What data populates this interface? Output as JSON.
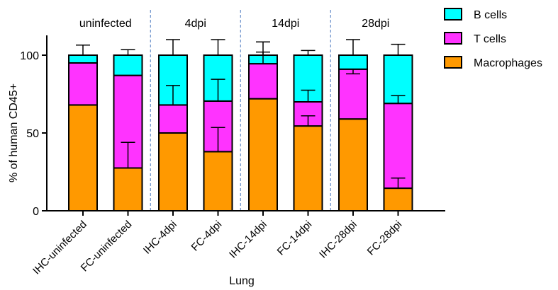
{
  "chart_data": {
    "type": "bar",
    "stacked": true,
    "xlabel": "Lung",
    "ylabel": "% of human CD45+",
    "ylim": [
      0,
      100
    ],
    "yticks": [
      0,
      50,
      100
    ],
    "categories": [
      "IHC-uninfected",
      "FC-uninfected",
      "IHC-4dpi",
      "FC-4dpi",
      "IHC-14dpi",
      "FC-14dpi",
      "IHC-28dpi",
      "FC-28dpi"
    ],
    "groups": [
      "uninfected",
      "4dpi",
      "14dpi",
      "28dpi"
    ],
    "series": [
      {
        "name": "Macrophages",
        "color": "#FF9900",
        "values": [
          68,
          27.5,
          50,
          38,
          72,
          54.5,
          59,
          14.5
        ],
        "error_plus": [
          null,
          16.5,
          null,
          15.5,
          null,
          6.5,
          null,
          6.5
        ]
      },
      {
        "name": "T cells",
        "color": "#FF33FF",
        "values": [
          27,
          59.5,
          18,
          32.5,
          22.5,
          15.5,
          32,
          54.5
        ],
        "error_plus": [
          null,
          null,
          12.5,
          14,
          7.5,
          7.5,
          -3,
          5
        ]
      },
      {
        "name": "B cells",
        "color": "#00FFFF",
        "values": [
          5,
          13,
          32,
          29.5,
          5.5,
          30,
          9,
          31
        ],
        "error_plus": [
          6.5,
          3.5,
          10,
          10,
          8.5,
          3,
          10,
          7
        ]
      }
    ],
    "legend_position": "top-right",
    "grid": false
  }
}
